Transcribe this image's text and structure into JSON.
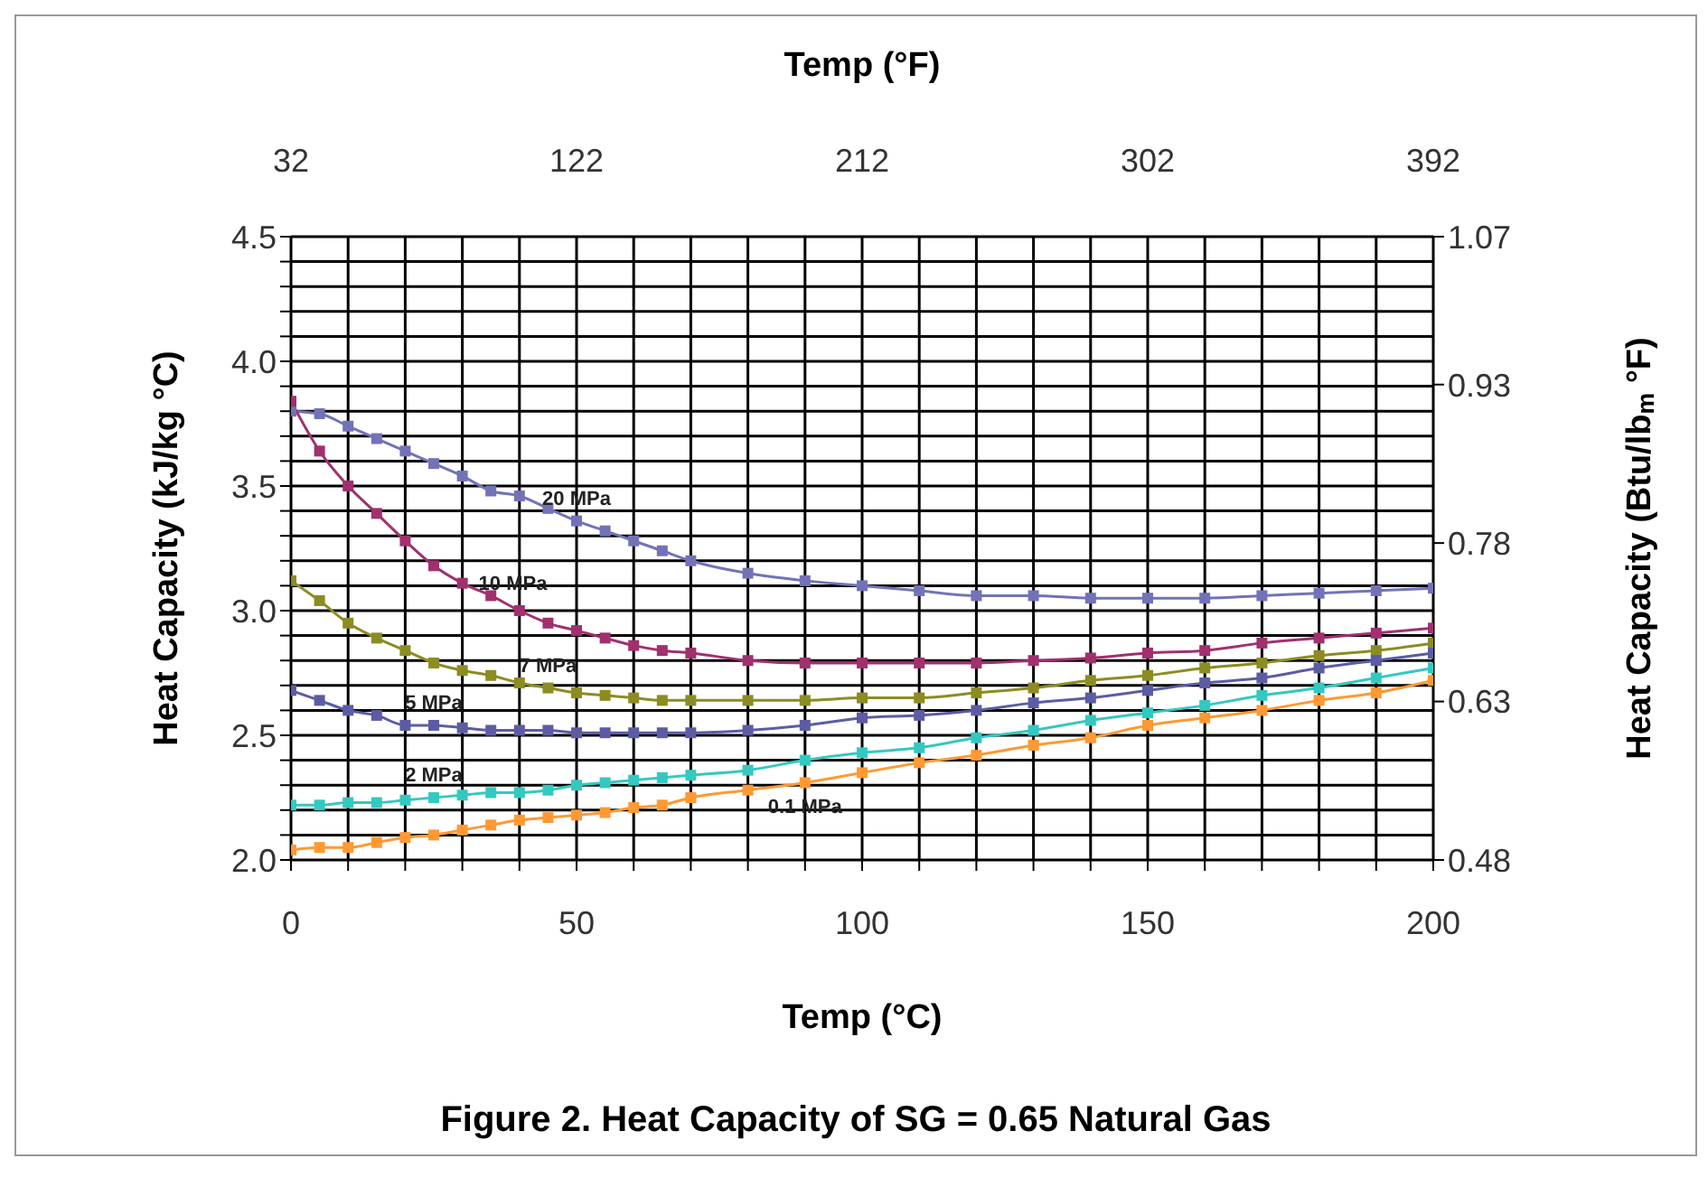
{
  "chart_data": {
    "type": "line",
    "title": "Figure 2. Heat Capacity of SG = 0.65 Natural Gas",
    "xlabel": "Temp (°C)",
    "x2label": "Temp (°F)",
    "ylabel": "Heat Capacity (kJ/kg °C)",
    "y2label": "Heat Capacity (Btu/lb$_{m}$ °F)",
    "x": [
      0,
      5,
      10,
      15,
      20,
      25,
      30,
      35,
      40,
      45,
      50,
      55,
      60,
      65,
      70,
      80,
      90,
      100,
      110,
      120,
      130,
      140,
      150,
      160,
      170,
      180,
      190,
      200
    ],
    "series": [
      {
        "name": "20 MPa",
        "color": "#7272b8",
        "values": [
          3.8,
          3.79,
          3.74,
          3.69,
          3.64,
          3.59,
          3.54,
          3.48,
          3.46,
          3.41,
          3.36,
          3.32,
          3.28,
          3.24,
          3.2,
          3.15,
          3.12,
          3.1,
          3.08,
          3.06,
          3.06,
          3.05,
          3.05,
          3.05,
          3.06,
          3.07,
          3.08,
          3.09
        ]
      },
      {
        "name": "10 MPa",
        "color": "#a0306e",
        "values": [
          3.84,
          3.64,
          3.5,
          3.39,
          3.28,
          3.18,
          3.11,
          3.06,
          3.0,
          2.95,
          2.92,
          2.89,
          2.86,
          2.84,
          2.83,
          2.8,
          2.79,
          2.79,
          2.79,
          2.79,
          2.8,
          2.81,
          2.83,
          2.84,
          2.87,
          2.89,
          2.91,
          2.93
        ]
      },
      {
        "name": "7 MPa",
        "color": "#8c8c22",
        "values": [
          3.12,
          3.04,
          2.95,
          2.89,
          2.84,
          2.79,
          2.76,
          2.74,
          2.71,
          2.69,
          2.67,
          2.66,
          2.65,
          2.64,
          2.64,
          2.64,
          2.64,
          2.65,
          2.65,
          2.67,
          2.69,
          2.72,
          2.74,
          2.77,
          2.79,
          2.82,
          2.84,
          2.87
        ]
      },
      {
        "name": "5 MPa",
        "color": "#5c5ca4",
        "values": [
          2.68,
          2.64,
          2.6,
          2.58,
          2.54,
          2.54,
          2.53,
          2.52,
          2.52,
          2.52,
          2.51,
          2.51,
          2.51,
          2.51,
          2.51,
          2.52,
          2.54,
          2.57,
          2.58,
          2.6,
          2.63,
          2.65,
          2.68,
          2.71,
          2.73,
          2.77,
          2.8,
          2.83
        ]
      },
      {
        "name": "2 MPa",
        "color": "#33c9c0",
        "values": [
          2.22,
          2.22,
          2.23,
          2.23,
          2.24,
          2.25,
          2.26,
          2.27,
          2.27,
          2.28,
          2.3,
          2.31,
          2.32,
          2.33,
          2.34,
          2.36,
          2.4,
          2.43,
          2.45,
          2.49,
          2.52,
          2.56,
          2.59,
          2.62,
          2.66,
          2.69,
          2.73,
          2.77
        ]
      },
      {
        "name": "0.1 MPa",
        "color": "#ff9933",
        "values": [
          2.04,
          2.05,
          2.05,
          2.07,
          2.09,
          2.1,
          2.12,
          2.14,
          2.16,
          2.17,
          2.18,
          2.19,
          2.21,
          2.22,
          2.25,
          2.28,
          2.31,
          2.35,
          2.39,
          2.42,
          2.46,
          2.49,
          2.54,
          2.57,
          2.6,
          2.64,
          2.67,
          2.72
        ]
      }
    ],
    "xlim": [
      0,
      200
    ],
    "xticks": [
      0,
      {
        "value": 10,
        "label": null
      },
      {
        "value": 20,
        "label": null
      },
      {
        "value": 30,
        "label": null
      },
      {
        "value": 40,
        "label": null
      },
      50,
      {
        "value": 60,
        "label": null
      },
      {
        "value": 70,
        "label": null
      },
      {
        "value": 80,
        "label": null
      },
      {
        "value": 90,
        "label": null
      },
      100,
      {
        "value": 110,
        "label": null
      },
      {
        "value": 120,
        "label": null
      },
      {
        "value": 130,
        "label": null
      },
      {
        "value": 140,
        "label": null
      },
      150,
      {
        "value": 160,
        "label": null
      },
      {
        "value": 170,
        "label": null
      },
      {
        "value": 180,
        "label": null
      },
      {
        "value": 190,
        "label": null
      },
      200
    ],
    "x2lim": [
      32,
      392
    ],
    "x2ticks": [
      32,
      122,
      212,
      302,
      392
    ],
    "ylim": [
      2.0,
      4.5
    ],
    "yticks": [
      {
        "value": 2.0,
        "label": "2.0"
      },
      {
        "value": 2.1,
        "label": null
      },
      {
        "value": 2.2,
        "label": null
      },
      {
        "value": 2.3,
        "label": null
      },
      {
        "value": 2.4,
        "label": null
      },
      2.5,
      {
        "value": 2.6,
        "label": null
      },
      {
        "value": 2.7,
        "label": null
      },
      {
        "value": 2.8,
        "label": null
      },
      {
        "value": 2.9,
        "label": null
      },
      {
        "value": 3.0,
        "label": "3.0"
      },
      {
        "value": 3.1,
        "label": null
      },
      {
        "value": 3.2,
        "label": null
      },
      {
        "value": 3.3,
        "label": null
      },
      {
        "value": 3.4,
        "label": null
      },
      3.5,
      {
        "value": 3.6,
        "label": null
      },
      {
        "value": 3.7,
        "label": null
      },
      {
        "value": 3.8,
        "label": null
      },
      {
        "value": 3.9,
        "label": null
      },
      {
        "value": 4.0,
        "label": "4.0"
      },
      {
        "value": 4.1,
        "label": null
      },
      {
        "value": 4.2,
        "label": null
      },
      {
        "value": 4.3,
        "label": null
      },
      {
        "value": 4.4,
        "label": null
      },
      4.5
    ],
    "y2lim": [
      0.48,
      1.07
    ],
    "y2ticks": [
      0.48,
      0.63,
      0.78,
      0.93,
      1.07
    ],
    "grid": true,
    "marker": "square",
    "line_style": "solid"
  }
}
